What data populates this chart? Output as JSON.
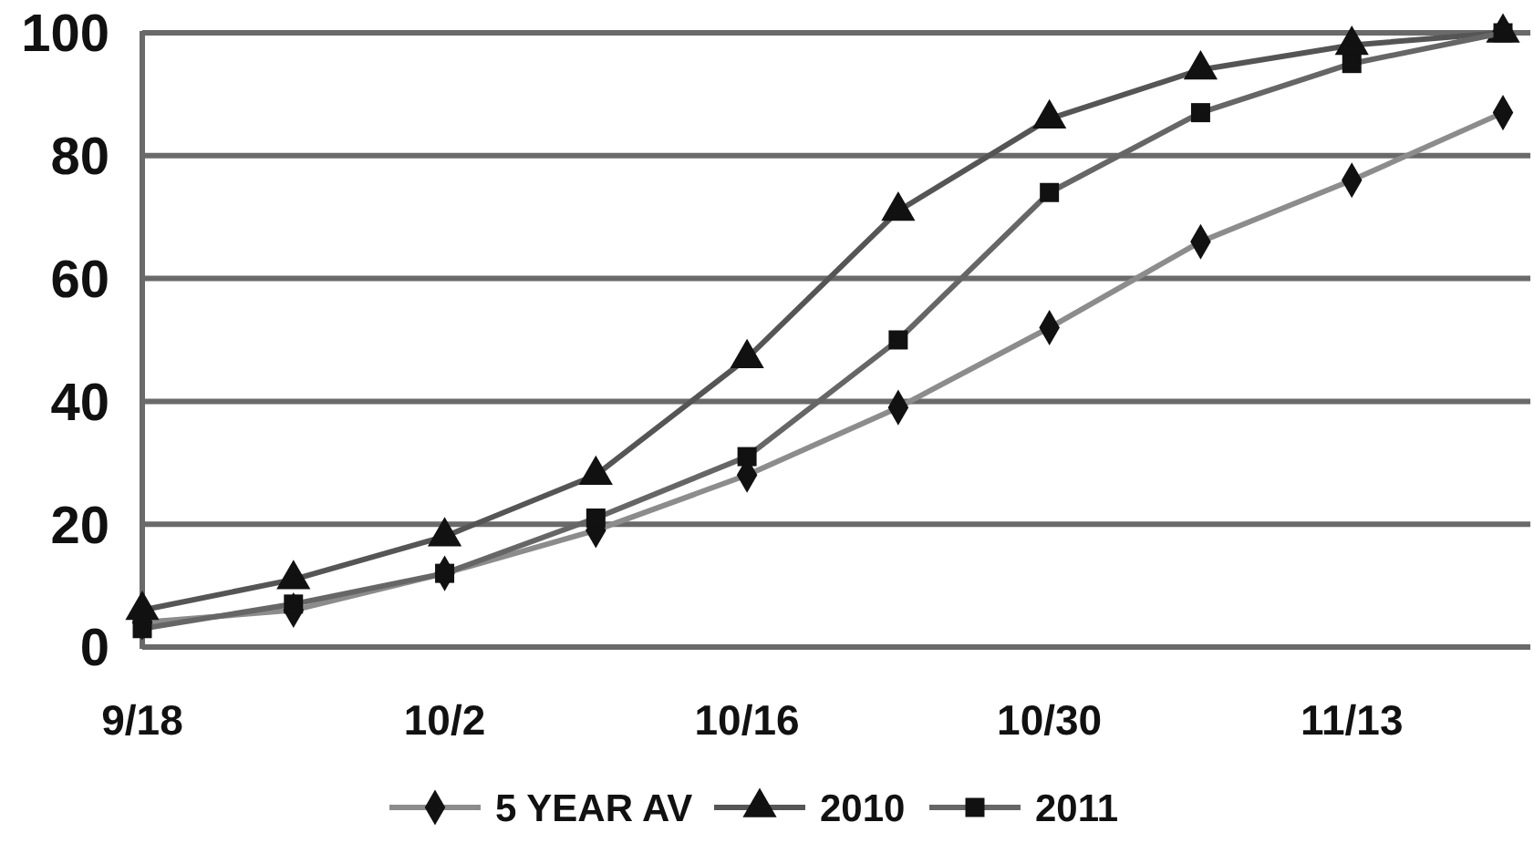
{
  "chart_data": {
    "type": "line",
    "categories": [
      "9/18",
      null,
      "10/2",
      null,
      "10/16",
      null,
      "10/30",
      null,
      "11/13",
      null
    ],
    "series": [
      {
        "name": "5 YEAR AV",
        "color": "#8c8c8c",
        "marker": "diamond",
        "values": [
          4,
          6,
          12,
          19,
          28,
          39,
          52,
          66,
          76,
          87
        ]
      },
      {
        "name": "2010",
        "color": "#555555",
        "marker": "triangle",
        "values": [
          6,
          11,
          18,
          28,
          47,
          71,
          86,
          94,
          98,
          100
        ]
      },
      {
        "name": "2011",
        "color": "#666666",
        "marker": "square",
        "values": [
          3,
          7,
          12,
          21,
          31,
          50,
          74,
          87,
          95,
          100
        ]
      }
    ],
    "ylim": [
      0,
      100
    ],
    "yticks": [
      0,
      20,
      40,
      60,
      80,
      100
    ],
    "grid": "y",
    "legend": "bottom"
  }
}
